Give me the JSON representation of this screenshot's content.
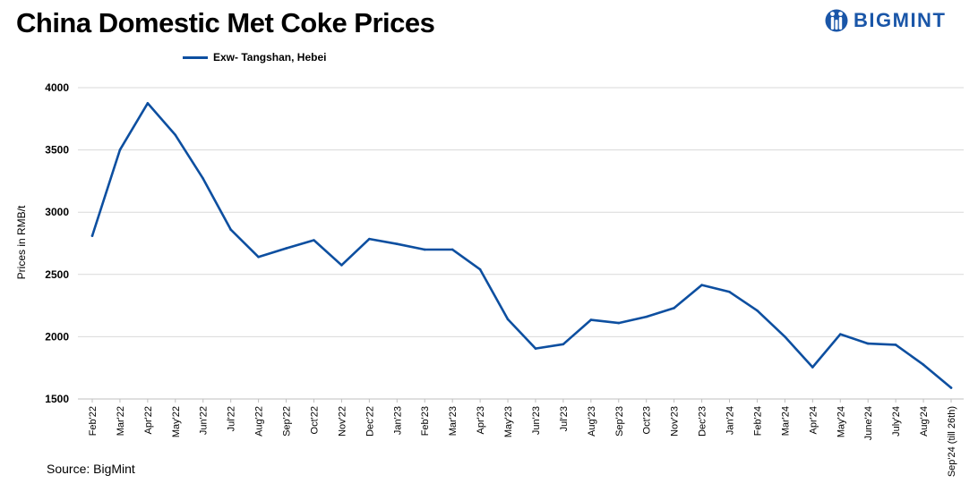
{
  "header": {
    "title": "China Domestic Met Coke Prices",
    "logo_text": "BIGMINT"
  },
  "footer": {
    "source": "Source: BigMint"
  },
  "colors": {
    "series": "#0d4fa0",
    "grid": "#d9d9d9",
    "brand": "#1a56a8"
  },
  "chart_data": {
    "type": "line",
    "title": "China Domestic Met Coke Prices",
    "xlabel": "",
    "ylabel": "Prices in RMB/t",
    "ylim": [
      1500,
      4000
    ],
    "yticks": [
      1500,
      2000,
      2500,
      3000,
      3500,
      4000
    ],
    "grid": true,
    "legend_position": "top",
    "categories": [
      "Feb'22",
      "Mar'22",
      "Apr'22",
      "May'22",
      "Jun'22",
      "Jul'22",
      "Aug'22",
      "Sep'22",
      "Oct'22",
      "Nov'22",
      "Dec'22",
      "Jan'23",
      "Feb'23",
      "Mar'23",
      "Apr'23",
      "May'23",
      "Jun'23",
      "Jul'23",
      "Aug'23",
      "Sep'23",
      "Oct'23",
      "Nov'23",
      "Dec'23",
      "Jan'24",
      "Feb'24",
      "Mar'24",
      "Apr'24",
      "May'24",
      "June'24",
      "July'24",
      "Aug'24",
      "Sep'24 (till 26th)"
    ],
    "series": [
      {
        "name": "Exw- Tangshan, Hebei",
        "values": [
          2810,
          3500,
          3875,
          3620,
          3270,
          2860,
          2640,
          2710,
          2775,
          2575,
          2785,
          2745,
          2700,
          2700,
          2540,
          2140,
          1905,
          1940,
          2135,
          2110,
          2160,
          2230,
          2415,
          2360,
          2210,
          2000,
          1755,
          2020,
          1945,
          1935,
          1775,
          1590
        ]
      }
    ]
  }
}
